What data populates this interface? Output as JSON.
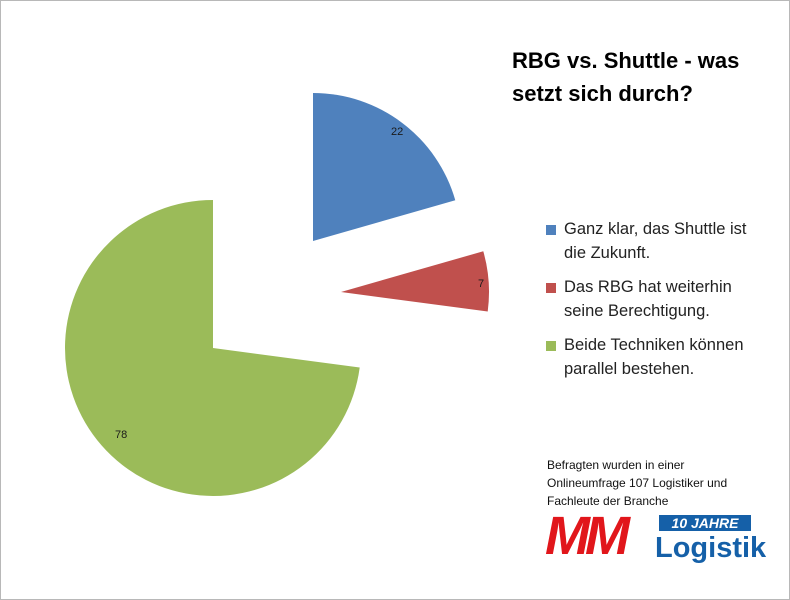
{
  "chart_data": {
    "type": "pie",
    "title_lines": [
      "RBG vs. Shuttle - was",
      "setzt sich durch?"
    ],
    "slices": [
      {
        "label_lines": [
          "Ganz klar, das Shuttle ist",
          "die Zukunft."
        ],
        "value": 22,
        "data_label": "22",
        "color": "#4f81bd"
      },
      {
        "label_lines": [
          "Das RBG hat weiterhin",
          "seine Berechtigung."
        ],
        "value": 7,
        "data_label": "7",
        "color": "#c0504d"
      },
      {
        "label_lines": [
          "Beide Techniken können",
          "parallel bestehen."
        ],
        "value": 78,
        "data_label": "78",
        "color": "#9bbb59"
      }
    ],
    "exploded": true,
    "legend_position": "right"
  },
  "note": {
    "lines": [
      "Befragten wurden in einer",
      "Onlineumfrage 107 Logistiker und",
      "Fachleute der Branche"
    ]
  },
  "logo": {
    "mark": "MM",
    "badge": "10 JAHRE",
    "brand": "Logistik",
    "mark_color": "#e1161b",
    "brand_color": "#1560a8"
  }
}
